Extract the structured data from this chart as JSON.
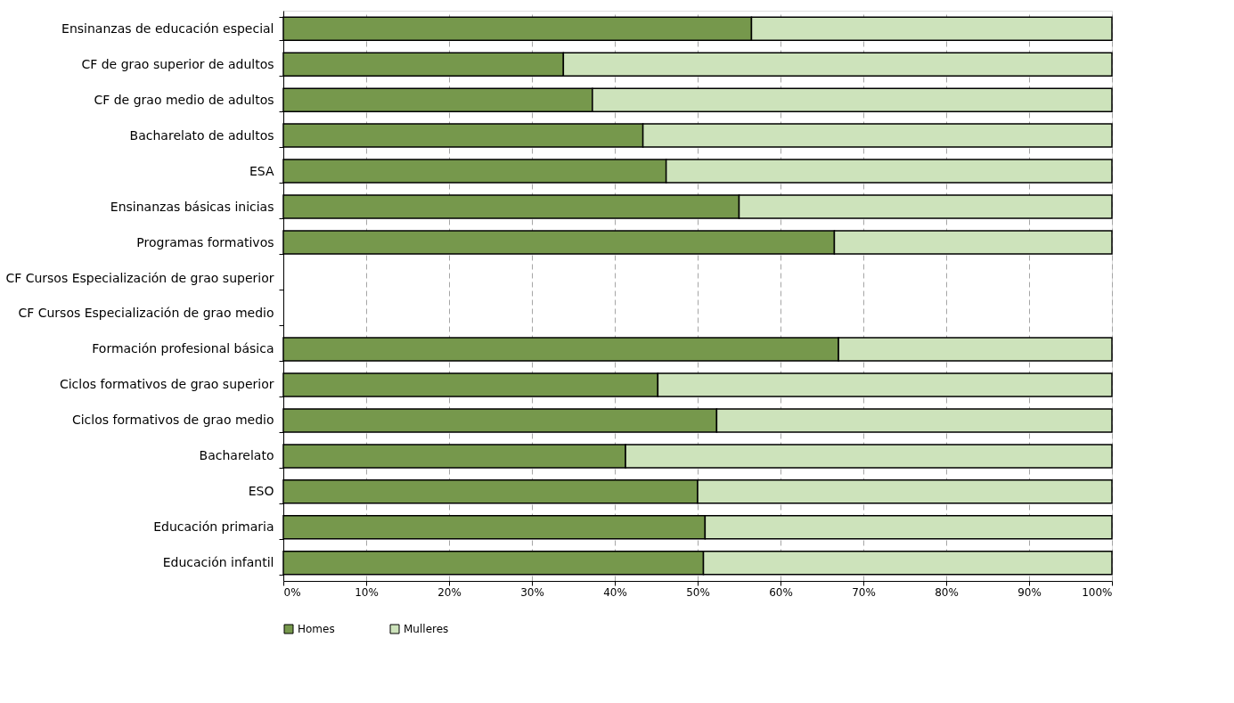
{
  "chart_data": {
    "type": "bar",
    "orientation": "horizontal",
    "stacked": true,
    "categories": [
      "Ensinanzas de educación especial",
      "CF de grao superior de adultos",
      "CF de grao medio de adultos",
      "Bacharelato de adultos",
      "ESA",
      "Ensinanzas básicas inicias",
      "Programas formativos",
      "CF Cursos Especialización de grao superior",
      "CF Cursos Especialización de grao medio",
      "Formación profesional básica",
      "Ciclos formativos de grao superior",
      "Ciclos formativos de grao medio",
      "Bacharelato",
      "ESO",
      "Educación primaria",
      "Educación infantil"
    ],
    "series": [
      {
        "name": "Homes",
        "color": "#76984c",
        "values": [
          56.5,
          33.8,
          37.3,
          43.4,
          46.2,
          55.0,
          66.5,
          null,
          null,
          67.0,
          45.2,
          52.3,
          41.3,
          50.0,
          50.9,
          50.7
        ]
      },
      {
        "name": "Mulleres",
        "color": "#cde3bb",
        "values": [
          43.5,
          66.2,
          62.7,
          56.6,
          53.8,
          45.0,
          33.5,
          null,
          null,
          33.0,
          54.8,
          47.7,
          58.7,
          50.0,
          49.1,
          49.3
        ]
      }
    ],
    "xlim": [
      0,
      100
    ],
    "xticks": [
      {
        "value": 0,
        "label": "0%"
      },
      {
        "value": 10,
        "label": "10%"
      },
      {
        "value": 20,
        "label": "20%"
      },
      {
        "value": 30,
        "label": "30%"
      },
      {
        "value": 40,
        "label": "40%"
      },
      {
        "value": 50,
        "label": "50%"
      },
      {
        "value": 60,
        "label": "60%"
      },
      {
        "value": 70,
        "label": "70%"
      },
      {
        "value": 80,
        "label": "80%"
      },
      {
        "value": 90,
        "label": "90%"
      },
      {
        "value": 100,
        "label": "100%"
      }
    ],
    "grid": "x",
    "legend": "bottom"
  }
}
